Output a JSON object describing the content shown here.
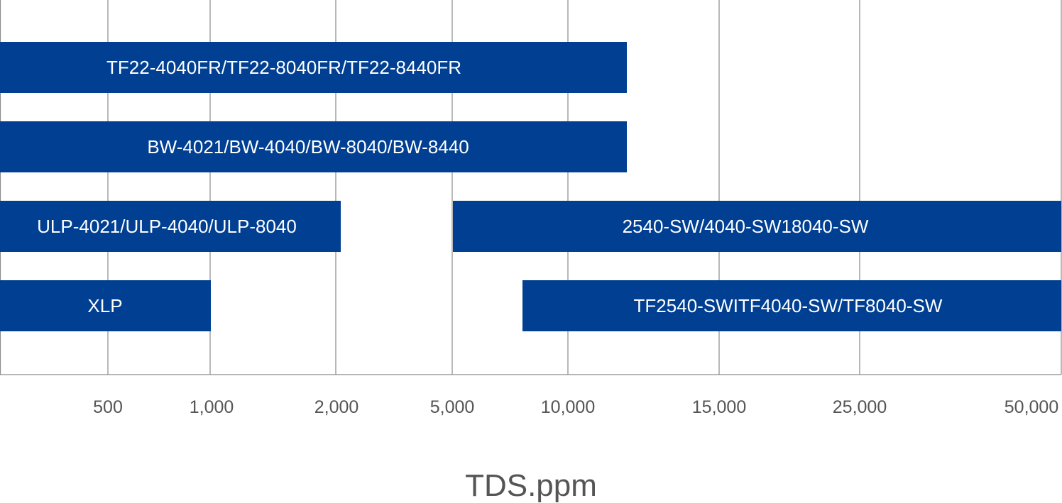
{
  "chart_data": {
    "type": "bar",
    "orientation": "horizontal-range",
    "title": "",
    "xlabel": "TDS.ppm",
    "ylabel": "",
    "x_ticks": [
      "500",
      "1,000",
      "2,000",
      "5,000",
      "10,000",
      "15,000",
      "25,000",
      "50,000"
    ],
    "grid": true,
    "legend": "none",
    "bars": [
      {
        "label": "TF22-4040FR/TF22-8040FR/TF22-8440FR",
        "start": "<500",
        "end": "~12,000"
      },
      {
        "label": "BW-4021/BW-4040/BW-8040/BW-8440",
        "start": "<500",
        "end": "~12,000"
      },
      {
        "label": "ULP-4021/ULP-4040/ULP-8040",
        "start": "<500",
        "end": "~2,000"
      },
      {
        "label": "2540-SW/4040-SW18040-SW",
        "start": "5,000",
        "end": ">50,000"
      },
      {
        "label": "XLP",
        "start": "<500",
        "end": "1,000"
      },
      {
        "label": "TF2540-SWITF4040-SW/TF8040-SW",
        "start": "~7,500",
        "end": ">50,000"
      }
    ],
    "colors": {
      "bar": "#003f92",
      "grid": "#8a8a8a",
      "bar_text": "#ffffff",
      "axis_text": "#555555"
    }
  }
}
